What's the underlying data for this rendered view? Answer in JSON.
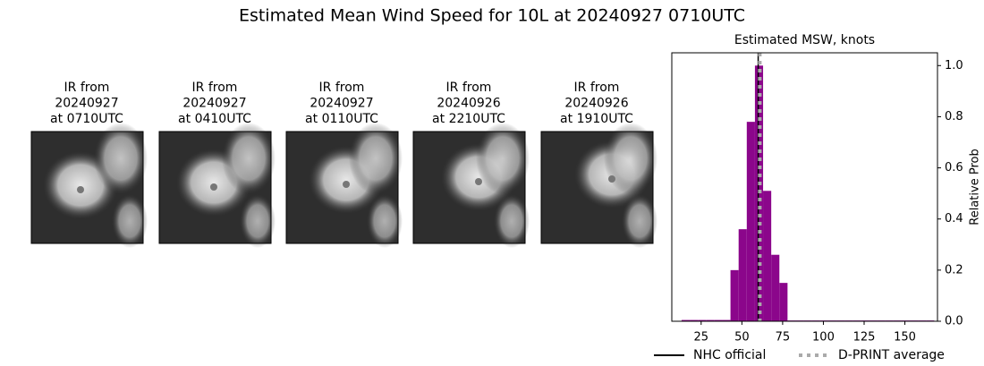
{
  "title": "Estimated Mean Wind Speed for 10L at 20240927 0710UTC",
  "panels": [
    {
      "lines": [
        "IR from",
        "20240927",
        "at 0710UTC"
      ]
    },
    {
      "lines": [
        "IR from",
        "20240927",
        "at 0410UTC"
      ]
    },
    {
      "lines": [
        "IR from",
        "20240927",
        "at 0110UTC"
      ]
    },
    {
      "lines": [
        "IR from",
        "20240926",
        "at 2210UTC"
      ]
    },
    {
      "lines": [
        "IR from",
        "20240926",
        "at 1910UTC"
      ]
    }
  ],
  "chart_data": {
    "type": "histogram",
    "title": "Estimated MSW, knots",
    "y_label": "Relative Prob",
    "color": "#8b068b",
    "bins": [
      13,
      18,
      23,
      28,
      33,
      38,
      43,
      48,
      53,
      58,
      63,
      68,
      73,
      78,
      83,
      88,
      93,
      98,
      103,
      108,
      113,
      118,
      123,
      128,
      133,
      138,
      143,
      148,
      153,
      158,
      163,
      168
    ],
    "values": [
      0.005,
      0.005,
      0.005,
      0.005,
      0.005,
      0.005,
      0.2,
      0.36,
      0.78,
      1.0,
      0.51,
      0.26,
      0.15,
      0.003,
      0.003,
      0.003,
      0.003,
      0.003,
      0.003,
      0.003,
      0.003,
      0.003,
      0.003,
      0.003,
      0.003,
      0.003,
      0.003,
      0.003,
      0.003,
      0.003,
      0.003
    ],
    "xlim": [
      7,
      170
    ],
    "ylim": [
      0,
      1.05
    ],
    "xticks": [
      25,
      50,
      75,
      100,
      125,
      150
    ],
    "yticks": [
      {
        "value": 0,
        "label": "0.0"
      },
      0.2,
      0.4,
      0.6,
      0.8,
      {
        "value": 1,
        "label": "1.0"
      }
    ],
    "lines": [
      {
        "name": "NHC official",
        "color": "#000000",
        "x": 60,
        "style": "solid"
      },
      {
        "name": "D-PRINT average",
        "color": "#aaaaaa",
        "x": 61,
        "style": "dotted"
      }
    ]
  }
}
